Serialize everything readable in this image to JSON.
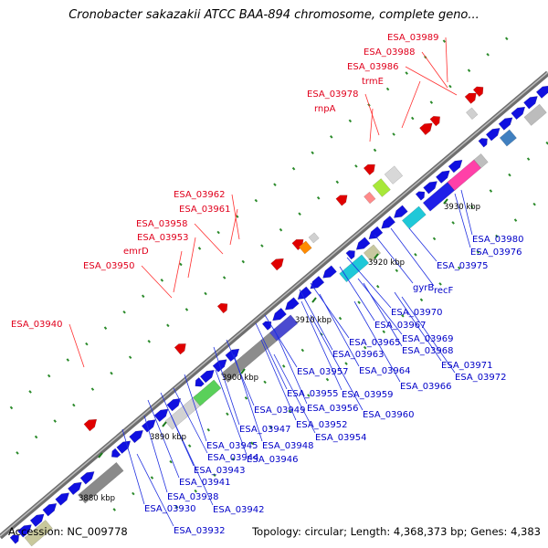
{
  "title": "Cronobacter sakazakii ATCC BAA-894 chromosome, complete geno...",
  "footer": {
    "accession": "Accession: NC_009778",
    "stats": "Topology: circular; Length: 4,368,373 bp; Genes: 4,383"
  },
  "colors": {
    "backbone": "#8a8a8a",
    "top_strand": "#e00000",
    "bottom_strand": "#1010e0",
    "top_label": "#e0001c",
    "bottom_label": "#0000c8",
    "dot": "#2a8a2a"
  },
  "scale_labels": [
    "3880 kbp",
    "3890 kbp",
    "3900 kbp",
    "3910 kbp",
    "3920 kbp",
    "3930 kbp"
  ],
  "top_labels": [
    "ESA_03989",
    "ESA_03988",
    "ESA_03986",
    "trmE",
    "ESA_03978",
    "rnpA",
    "ESA_03962",
    "ESA_03961",
    "ESA_03958",
    "ESA_03953",
    "emrD",
    "ESA_03950",
    "ESA_03940"
  ],
  "bottom_labels": [
    "ESA_03980",
    "ESA_03976",
    "ESA_03975",
    "recF",
    "gyrB",
    "ESA_03970",
    "ESA_03967",
    "ESA_03969",
    "ESA_03965",
    "ESA_03968",
    "ESA_03963",
    "ESA_03971",
    "ESA_03972",
    "ESA_03964",
    "ESA_03957",
    "ESA_03966",
    "ESA_03959",
    "ESA_03955",
    "ESA_03956",
    "ESA_03960",
    "ESA_03949",
    "ESA_03952",
    "ESA_03947",
    "ESA_03954",
    "ESA_03948",
    "ESA_03945",
    "ESA_03946",
    "ESA_03944",
    "ESA_03943",
    "ESA_03941",
    "ESA_03938",
    "ESA_03942",
    "ESA_03930",
    "ESA_03932"
  ]
}
